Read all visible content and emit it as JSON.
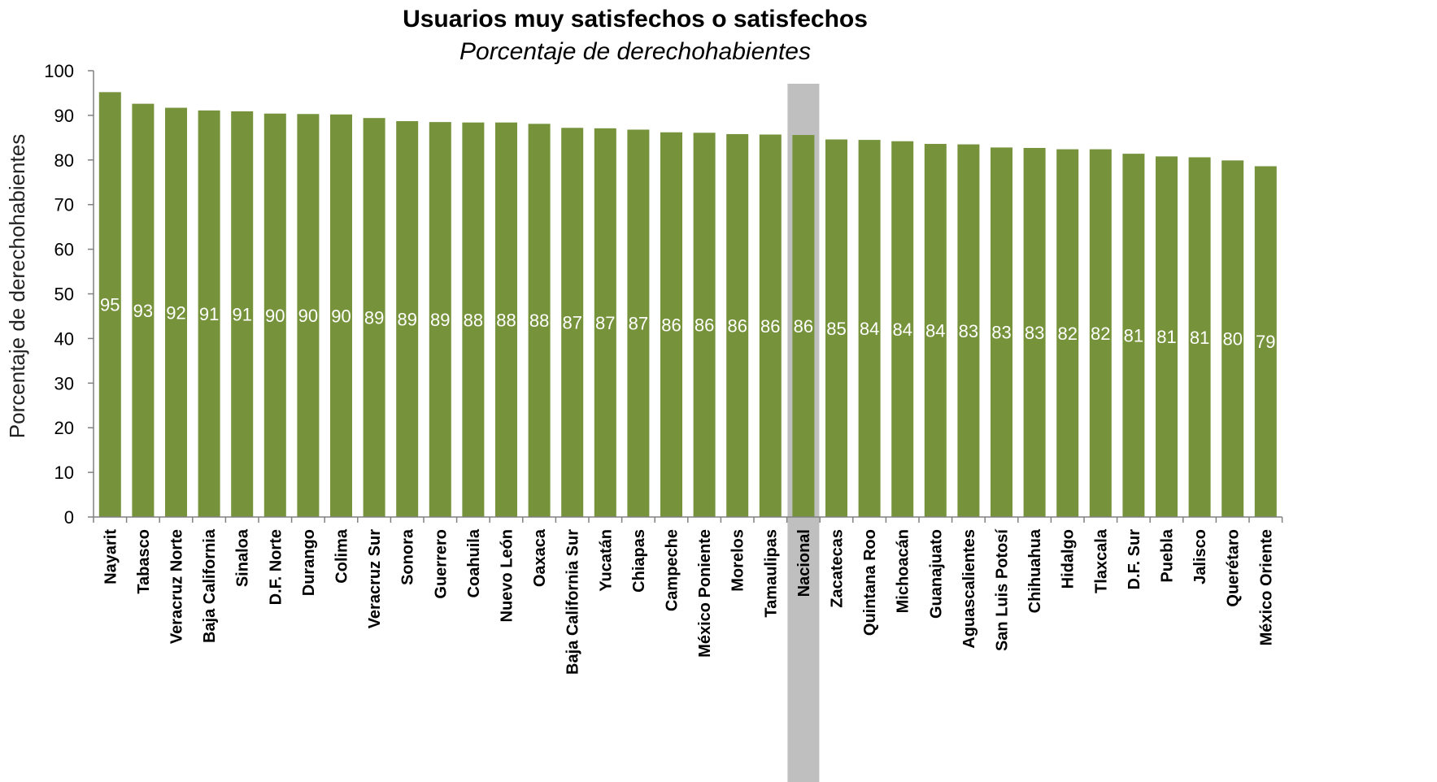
{
  "chart_data": {
    "type": "bar",
    "title": "Usuarios muy satisfechos o satisfechos",
    "subtitle": "Porcentaje de derechohabientes",
    "ylabel": "Porcentaje de derechohabientes",
    "xlabel": "",
    "ylim": [
      0,
      100
    ],
    "yticks": [
      0,
      10,
      20,
      30,
      40,
      50,
      60,
      70,
      80,
      90,
      100
    ],
    "grid": false,
    "legend": "none",
    "categories": [
      "Nayarit",
      "Tabasco",
      "Veracruz Norte",
      "Baja California",
      "Sinaloa",
      "D.F. Norte",
      "Durango",
      "Colima",
      "Veracruz Sur",
      "Sonora",
      "Guerrero",
      "Coahuila",
      "Nuevo León",
      "Oaxaca",
      "Baja California Sur",
      "Yucatán",
      "Chiapas",
      "Campeche",
      "México Poniente",
      "Morelos",
      "Tamaulipas",
      "Nacional",
      "Zacatecas",
      "Quintana Roo",
      "Michoacán",
      "Guanajuato",
      "Aguascalientes",
      "San Luis Potosí",
      "Chihuahua",
      "Hidalgo",
      "Tlaxcala",
      "D.F. Sur",
      "Puebla",
      "Jalisco",
      "Querétaro",
      "México Oriente"
    ],
    "values": [
      95.2,
      92.6,
      91.7,
      91.1,
      90.9,
      90.4,
      90.3,
      90.2,
      89.4,
      88.7,
      88.5,
      88.4,
      88.4,
      88.1,
      87.2,
      87.1,
      86.8,
      86.2,
      86.1,
      85.8,
      85.7,
      85.6,
      84.6,
      84.5,
      84.2,
      83.6,
      83.5,
      82.8,
      82.7,
      82.4,
      82.4,
      81.4,
      80.8,
      80.6,
      79.9,
      78.6
    ],
    "data_labels": [
      "95",
      "93",
      "92",
      "91",
      "91",
      "90",
      "90",
      "90",
      "89",
      "89",
      "89",
      "88",
      "88",
      "88",
      "87",
      "87",
      "87",
      "86",
      "86",
      "86",
      "86",
      "86",
      "85",
      "84",
      "84",
      "84",
      "83",
      "83",
      "83",
      "82",
      "82",
      "81",
      "81",
      "81",
      "80",
      "79"
    ],
    "highlight_category": "Nacional",
    "colors": {
      "bar": "#76933c",
      "highlight_band": "#bfbfbf",
      "axis": "#808080",
      "data_label": "#ffffff"
    }
  }
}
